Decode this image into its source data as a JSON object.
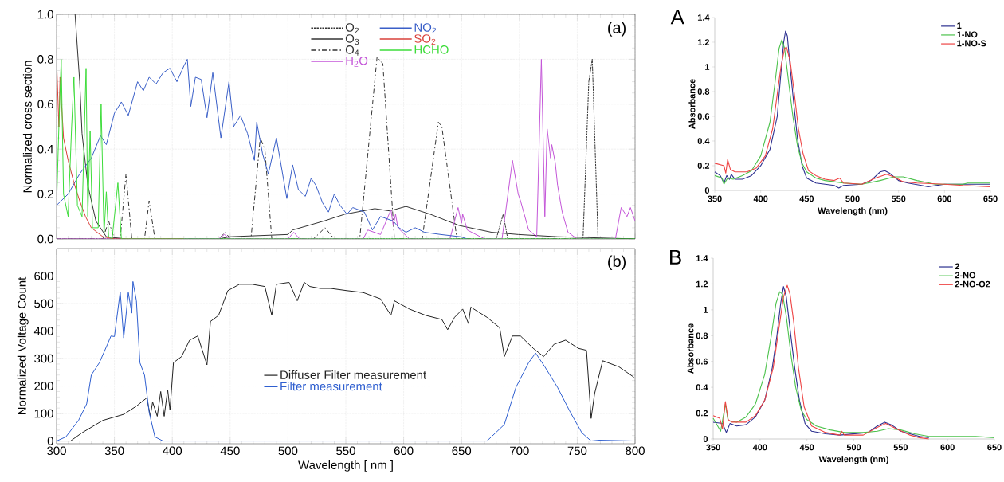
{
  "chart_data": [
    {
      "type": "line",
      "ylabel": "Normalized cross section",
      "xlim": [
        300,
        800
      ],
      "ylim": [
        0,
        1.0
      ],
      "xticks": [
        300,
        350,
        400,
        450,
        500,
        550,
        600,
        650,
        700,
        750,
        800
      ],
      "yticks": [
        {
          "value": 0,
          "label": "0.0"
        },
        0.2,
        0.4,
        0.6,
        0.8,
        {
          "value": 1.0,
          "label": "1.0"
        }
      ],
      "tick_labels": "y",
      "grid": true,
      "legend": "top",
      "annotations": [
        "(a)"
      ],
      "series": [
        {
          "name": "O$_{2}$",
          "color": "#333333",
          "line_style": "dotted",
          "x": [
            300,
            680,
            686,
            690,
            755,
            760,
            763,
            768,
            800
          ],
          "values": [
            0,
            0,
            0.11,
            0,
            0,
            0.7,
            0.8,
            0,
            0
          ]
        },
        {
          "name": "O$_{3}$",
          "color": "#333333",
          "line_style": "solid",
          "x": [
            316,
            320,
            322,
            327,
            334,
            343,
            360,
            440,
            450,
            500,
            504,
            531,
            549,
            575,
            588,
            602,
            623,
            648,
            676,
            699,
            733,
            800
          ],
          "values": [
            1.0,
            0.7,
            0.47,
            0.24,
            0.08,
            0.01,
            0,
            0,
            0.01,
            0.02,
            0.04,
            0.08,
            0.11,
            0.135,
            0.125,
            0.145,
            0.11,
            0.06,
            0.03,
            0.02,
            0.01,
            0
          ]
        },
        {
          "name": "O$_{4}$",
          "color": "#333333",
          "line_style": "dashed",
          "x": [
            300,
            340,
            345,
            350,
            355,
            360,
            365,
            376,
            380,
            385,
            440,
            446,
            450,
            468,
            476,
            480,
            486,
            522,
            532,
            540,
            562,
            577,
            582,
            592,
            616,
            630,
            633,
            646,
            800
          ],
          "values": [
            0,
            0,
            0.08,
            0,
            0,
            0.29,
            0,
            0,
            0.17,
            0,
            0,
            0.03,
            0,
            0,
            0.45,
            0.4,
            0,
            0,
            0.05,
            0,
            0,
            0.81,
            0.78,
            0,
            0,
            0.52,
            0.5,
            0,
            0
          ]
        },
        {
          "name": "H$_{2}$O",
          "color": "#c456d8",
          "line_style": "solid",
          "x": [
            300,
            440,
            445,
            450,
            500,
            505,
            510,
            565,
            569,
            580,
            589,
            591,
            593,
            595,
            605,
            640,
            647,
            650,
            651,
            655,
            670,
            685,
            694,
            699,
            701,
            708,
            715,
            719,
            722,
            724,
            727,
            728,
            731,
            733,
            737,
            742,
            750,
            783,
            788,
            793,
            796,
            800
          ],
          "values": [
            0,
            0,
            0.02,
            0,
            0,
            0.03,
            0,
            0,
            0.04,
            0.02,
            0.13,
            0.06,
            0.11,
            0.05,
            0,
            0,
            0.14,
            0.07,
            0.11,
            0.04,
            0,
            0,
            0.35,
            0.2,
            0.17,
            0.04,
            0.01,
            0.8,
            0.1,
            0.49,
            0.36,
            0.42,
            0.34,
            0.24,
            0.12,
            0.03,
            0,
            0,
            0.14,
            0.1,
            0.14,
            0.08
          ]
        },
        {
          "name": "NO$_{2}$",
          "color": "#3a5fc8",
          "line_style": "solid",
          "x": [
            300,
            310,
            320,
            330,
            338,
            343,
            350,
            356,
            362,
            370,
            375,
            380,
            386,
            392,
            398,
            404,
            410,
            413,
            416,
            420,
            425,
            430,
            435,
            442,
            449,
            453,
            459,
            465,
            471,
            473,
            478,
            483,
            490,
            494,
            499,
            504,
            509,
            515,
            520,
            524,
            530,
            535,
            540,
            545,
            551,
            556,
            566,
            573,
            580,
            591,
            596,
            602,
            610,
            618,
            632,
            649,
            655
          ],
          "values": [
            0.15,
            0.2,
            0.29,
            0.36,
            0.46,
            0.42,
            0.56,
            0.61,
            0.55,
            0.7,
            0.66,
            0.72,
            0.69,
            0.74,
            0.76,
            0.7,
            0.77,
            0.8,
            0.59,
            0.72,
            0.71,
            0.54,
            0.74,
            0.45,
            0.7,
            0.5,
            0.55,
            0.47,
            0.35,
            0.52,
            0.38,
            0.29,
            0.45,
            0.33,
            0.18,
            0.33,
            0.22,
            0.19,
            0.27,
            0.24,
            0.16,
            0.12,
            0.2,
            0.15,
            0.11,
            0.14,
            0.12,
            0.04,
            0.1,
            0.08,
            0.05,
            0.03,
            0.05,
            0.03,
            0.02,
            0.01,
            0
          ]
        },
        {
          "name": "SO$_{2}$",
          "color": "#d9403a",
          "line_style": "solid",
          "x": [
            300,
            302,
            303,
            306,
            310,
            315,
            320,
            325,
            330,
            340,
            350,
            410
          ],
          "values": [
            0.8,
            0.5,
            0.72,
            0.45,
            0.35,
            0.25,
            0.17,
            0.1,
            0.05,
            0.01,
            0,
            0
          ]
        },
        {
          "name": "HCHO",
          "color": "#3ddc3a",
          "line_style": "solid",
          "x": [
            300,
            302,
            304,
            306,
            310,
            313,
            315,
            318,
            322,
            325.5,
            327,
            329,
            331,
            336,
            338.5,
            341,
            343,
            345,
            348,
            353,
            356,
            360,
            800
          ],
          "values": [
            0.15,
            0.5,
            0.8,
            0.2,
            0.1,
            0.5,
            0.72,
            0.15,
            0.1,
            0.76,
            0.1,
            0.48,
            0.05,
            0.05,
            0.6,
            0.02,
            0.21,
            0.01,
            0,
            0.25,
            0,
            0,
            0
          ]
        }
      ]
    },
    {
      "type": "line",
      "xlabel": "Wavelength [ nm ]",
      "ylabel": "Normalized Voltage Count",
      "xlim": [
        300,
        800
      ],
      "ylim": [
        -10,
        700
      ],
      "xticks": [
        300,
        350,
        400,
        450,
        500,
        550,
        600,
        650,
        700,
        750,
        800
      ],
      "yticks": [
        0,
        100,
        200,
        300,
        400,
        500,
        600
      ],
      "grid": true,
      "legend": "bottom",
      "annotations": [
        "(b)"
      ],
      "series": [
        {
          "name": "Diffuser Filter measurement",
          "color": "#222222",
          "line_style": "solid",
          "x": [
            300,
            312,
            322,
            340,
            358,
            369,
            378,
            381,
            383,
            387,
            390,
            393,
            396,
            398,
            401,
            408,
            415,
            422,
            430,
            433,
            440,
            448,
            458,
            469,
            480,
            486,
            490,
            501,
            508,
            514,
            519,
            528,
            537,
            551,
            565,
            580,
            589,
            592,
            605,
            619,
            633,
            638,
            644,
            651,
            656,
            658,
            672,
            683,
            687,
            694,
            701,
            712,
            721,
            730,
            740,
            751,
            758,
            762,
            765,
            772,
            786,
            799
          ],
          "values": [
            0,
            0,
            30,
            75,
            97,
            127,
            157,
            90,
            142,
            90,
            180,
            90,
            187,
            112,
            285,
            307,
            367,
            382,
            277,
            435,
            457,
            547,
            570,
            570,
            562,
            457,
            570,
            577,
            510,
            577,
            562,
            555,
            555,
            547,
            540,
            517,
            457,
            510,
            480,
            457,
            442,
            405,
            450,
            480,
            427,
            487,
            450,
            412,
            307,
            382,
            382,
            337,
            307,
            352,
            367,
            337,
            330,
            82,
            172,
            292,
            270,
            232
          ]
        },
        {
          "name": "Filter measurement",
          "color": "#2f5fd0",
          "line_style": "solid",
          "x": [
            300,
            308,
            319,
            326,
            330,
            337,
            344,
            347,
            350,
            355,
            358,
            362,
            365,
            366,
            369,
            372,
            376,
            380,
            385,
            392,
            672,
            687,
            697,
            708,
            714,
            722,
            733,
            744,
            754,
            762,
            769,
            800
          ],
          "values": [
            0,
            15,
            75,
            135,
            240,
            285,
            352,
            382,
            380,
            543,
            375,
            540,
            465,
            580,
            510,
            285,
            240,
            105,
            15,
            0,
            0,
            60,
            195,
            285,
            320,
            270,
            195,
            105,
            30,
            0,
            3,
            0
          ]
        }
      ]
    },
    {
      "type": "line",
      "xlabel": "Wavelength (nm)",
      "ylabel": "Absorbance",
      "xlim": [
        350,
        650
      ],
      "ylim": [
        0,
        1.4
      ],
      "xticks": [
        350,
        400,
        450,
        500,
        550,
        600,
        650
      ],
      "yticks": [
        0,
        0.2,
        0.4,
        0.6,
        0.8,
        1,
        1.2,
        1.4
      ],
      "legend": "top right",
      "annotations": [
        "A"
      ],
      "series": [
        {
          "name": "1",
          "color": "#2b2f8f",
          "line_style": "solid",
          "x": [
            350,
            356,
            360,
            363,
            366,
            368,
            372,
            380,
            390,
            400,
            410,
            418,
            422,
            425,
            427,
            429,
            432,
            436,
            440,
            445,
            450,
            460,
            470,
            480,
            485,
            490,
            510,
            520,
            530,
            535,
            540,
            550,
            560,
            575,
            582,
            600,
            620,
            625,
            650
          ],
          "values": [
            0.15,
            0.12,
            0.06,
            0.12,
            0.09,
            0.13,
            0.09,
            0.09,
            0.12,
            0.2,
            0.33,
            0.6,
            0.95,
            1.2,
            1.29,
            1.25,
            1.0,
            0.7,
            0.42,
            0.2,
            0.1,
            0.06,
            0.05,
            0.04,
            0.02,
            0.04,
            0.05,
            0.08,
            0.15,
            0.16,
            0.14,
            0.08,
            0.06,
            0.04,
            0.03,
            0.05,
            0.05,
            0.05,
            0.05
          ]
        },
        {
          "name": "1-NO",
          "color": "#4cc24c",
          "line_style": "solid",
          "x": [
            350,
            358,
            360,
            364,
            370,
            380,
            390,
            400,
            410,
            416,
            420,
            423,
            426,
            430,
            435,
            440,
            445,
            450,
            460,
            470,
            480,
            490,
            510,
            530,
            545,
            555,
            570,
            590,
            620,
            625,
            650
          ],
          "values": [
            0.12,
            0.1,
            0.05,
            0.1,
            0.09,
            0.12,
            0.16,
            0.28,
            0.55,
            0.9,
            1.15,
            1.22,
            1.15,
            0.9,
            0.6,
            0.36,
            0.22,
            0.15,
            0.1,
            0.08,
            0.07,
            0.06,
            0.05,
            0.08,
            0.11,
            0.11,
            0.08,
            0.05,
            0.05,
            0.06,
            0.06
          ]
        },
        {
          "name": "1-NO-S",
          "color": "#ee4444",
          "line_style": "solid",
          "x": [
            350,
            360,
            362,
            364,
            367,
            372,
            385,
            395,
            405,
            413,
            418,
            422,
            426,
            428,
            432,
            436,
            441,
            446,
            452,
            460,
            470,
            480,
            486,
            490,
            510,
            525,
            537,
            545,
            555,
            570,
            600,
            620,
            650
          ],
          "values": [
            0.22,
            0.2,
            0.14,
            0.25,
            0.17,
            0.15,
            0.15,
            0.18,
            0.28,
            0.5,
            0.78,
            1.0,
            1.15,
            1.16,
            1.05,
            0.82,
            0.5,
            0.3,
            0.16,
            0.12,
            0.09,
            0.08,
            0.1,
            0.06,
            0.05,
            0.1,
            0.13,
            0.11,
            0.07,
            0.06,
            0.05,
            0.04,
            0.03
          ]
        }
      ]
    },
    {
      "type": "line",
      "xlabel": "Wavelength (nm)",
      "ylabel": "Absorbance",
      "xlim": [
        350,
        650
      ],
      "ylim": [
        0,
        1.4
      ],
      "xticks": [
        350,
        400,
        450,
        500,
        550,
        600,
        650
      ],
      "yticks": [
        0,
        0.2,
        0.4,
        0.6,
        0.8,
        1,
        1.2,
        1.4
      ],
      "legend": "top right",
      "annotations": [
        "B"
      ],
      "series": [
        {
          "name": "2",
          "color": "#2b2f8f",
          "line_style": "solid",
          "x": [
            350,
            360,
            364,
            368,
            375,
            385,
            395,
            405,
            413,
            418,
            422,
            425,
            428,
            432,
            437,
            442,
            448,
            455,
            470,
            485,
            500,
            515,
            525,
            533,
            540,
            550,
            560,
            570,
            580
          ],
          "values": [
            0.13,
            0.12,
            0.05,
            0.12,
            0.1,
            0.11,
            0.17,
            0.3,
            0.55,
            0.8,
            1.05,
            1.18,
            1.1,
            0.85,
            0.55,
            0.3,
            0.12,
            0.06,
            0.04,
            0.03,
            0.04,
            0.05,
            0.1,
            0.13,
            0.11,
            0.06,
            0.04,
            0.02,
            0.01
          ]
        },
        {
          "name": "2-NO",
          "color": "#4cc24c",
          "line_style": "solid",
          "x": [
            350,
            358,
            363,
            366,
            375,
            385,
            395,
            405,
            412,
            417,
            421,
            424,
            428,
            433,
            438,
            444,
            450,
            460,
            475,
            490,
            510,
            525,
            537,
            550,
            565,
            580,
            600,
            630,
            650
          ],
          "values": [
            0.16,
            0.06,
            0.27,
            0.14,
            0.13,
            0.17,
            0.27,
            0.5,
            0.8,
            1.05,
            1.14,
            1.12,
            0.95,
            0.65,
            0.4,
            0.22,
            0.15,
            0.1,
            0.07,
            0.05,
            0.05,
            0.06,
            0.08,
            0.07,
            0.04,
            0.02,
            0.02,
            0.02,
            0.01
          ]
        },
        {
          "name": "2-NO-O2",
          "color": "#ee4444",
          "line_style": "solid",
          "x": [
            350,
            357,
            360,
            363,
            366,
            370,
            385,
            395,
            405,
            414,
            420,
            425,
            429,
            432,
            436,
            441,
            447,
            455,
            470,
            485,
            487,
            490,
            510,
            525,
            534,
            545,
            560,
            570,
            580
          ],
          "values": [
            0.18,
            0.16,
            0.08,
            0.29,
            0.15,
            0.13,
            0.13,
            0.18,
            0.3,
            0.55,
            0.85,
            1.1,
            1.19,
            1.12,
            0.9,
            0.55,
            0.25,
            0.1,
            0.05,
            0.03,
            0.06,
            0.03,
            0.03,
            0.09,
            0.12,
            0.08,
            0.03,
            0.01,
            0
          ]
        }
      ]
    }
  ]
}
